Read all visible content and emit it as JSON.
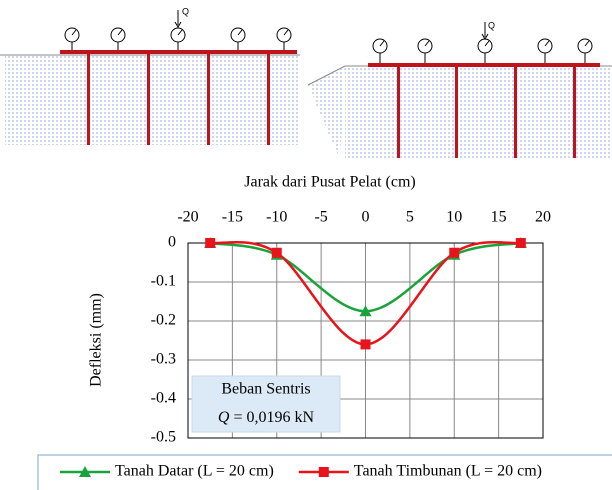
{
  "chart_data": {
    "type": "line",
    "x_label": "Jarak dari Pusat Pelat (cm)",
    "y_label": "Defleksi (mm)",
    "x": [
      -17.5,
      -10,
      0,
      10,
      17.5
    ],
    "series": [
      {
        "name": "Tanah Datar (L = 20 cm)",
        "color": "#1aa33a",
        "marker": "triangle",
        "values": [
          0,
          -0.03,
          -0.175,
          -0.03,
          0
        ]
      },
      {
        "name": "Tanah Timbunan (L = 20 cm)",
        "color": "#e8141c",
        "marker": "square",
        "values": [
          0,
          -0.025,
          -0.26,
          -0.025,
          0
        ]
      }
    ],
    "xlim": [
      -20,
      20
    ],
    "xticks": [
      -20,
      -15,
      -10,
      -5,
      0,
      5,
      10,
      15,
      20
    ],
    "ylim": [
      -0.5,
      0
    ],
    "yticks": [
      0,
      -0.1,
      -0.2,
      -0.3,
      -0.4,
      -0.5
    ],
    "grid": true,
    "smooth": true,
    "legend": "bottom",
    "annotation": [
      "Beban Sentris",
      "Q",
      "= 0,0196 kN"
    ]
  },
  "diagrams": [
    {
      "load_label": "Q"
    },
    {
      "load_label": "Q"
    }
  ]
}
